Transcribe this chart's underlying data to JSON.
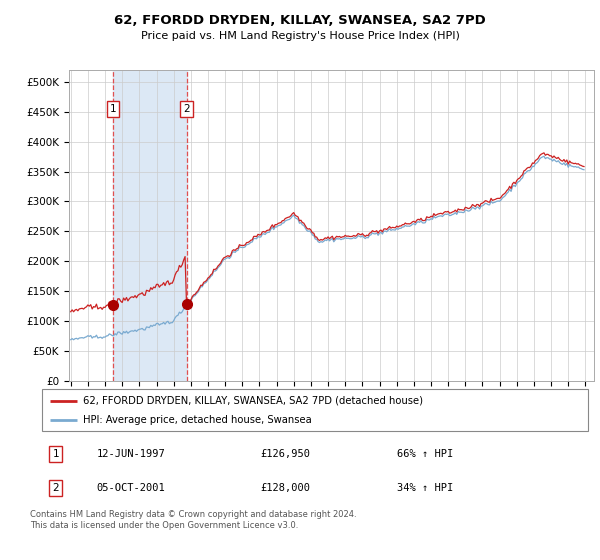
{
  "title": "62, FFORDD DRYDEN, KILLAY, SWANSEA, SA2 7PD",
  "subtitle": "Price paid vs. HM Land Registry's House Price Index (HPI)",
  "legend_line1": "62, FFORDD DRYDEN, KILLAY, SWANSEA, SA2 7PD (detached house)",
  "legend_line2": "HPI: Average price, detached house, Swansea",
  "transaction1_date": "12-JUN-1997",
  "transaction1_price": "£126,950",
  "transaction1_hpi": "66% ↑ HPI",
  "transaction2_date": "05-OCT-2001",
  "transaction2_price": "£128,000",
  "transaction2_hpi": "34% ↑ HPI",
  "footer": "Contains HM Land Registry data © Crown copyright and database right 2024.\nThis data is licensed under the Open Government Licence v3.0.",
  "hpi_color": "#7aaad0",
  "price_color": "#cc2222",
  "marker_color": "#aa0000",
  "shade_color": "#dce8f5",
  "vline_color": "#e05050",
  "ylim_min": 0,
  "ylim_max": 520000,
  "ytick_step": 50000,
  "x_start_year": 1995,
  "x_end_year": 2025,
  "t1_year": 1997.458,
  "t1_price": 126950,
  "t2_year": 2001.75,
  "t2_price": 128000
}
